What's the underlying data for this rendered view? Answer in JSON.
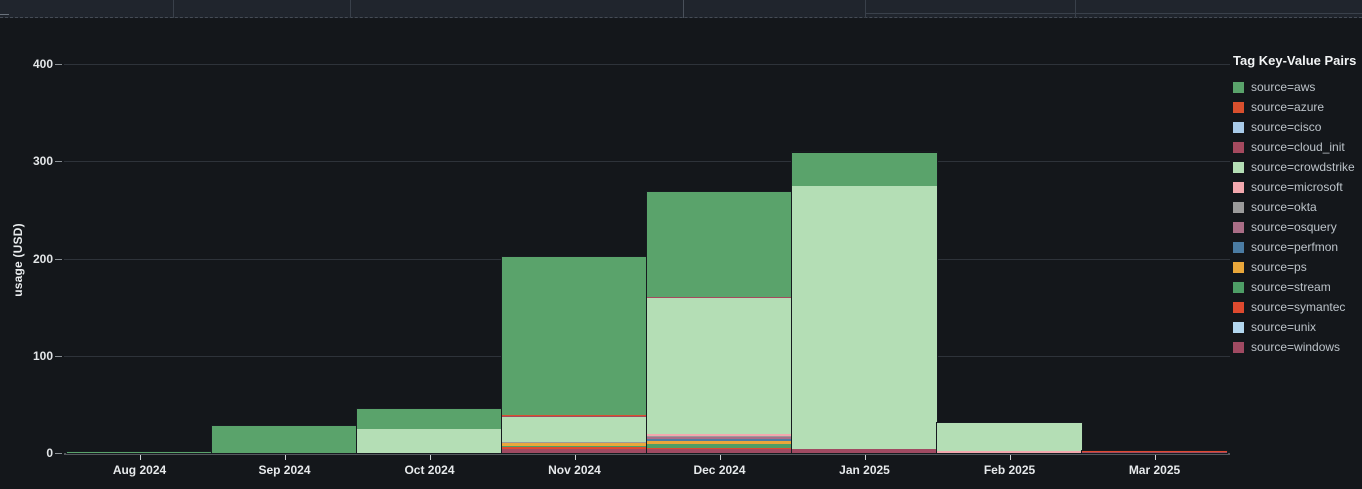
{
  "chart": {
    "y_axis": {
      "title": "usage (USD)",
      "ticks": [
        0,
        100,
        200,
        300,
        400
      ]
    },
    "x_axis": {
      "labels": [
        "Aug 2024",
        "Sep 2024",
        "Oct 2024",
        "Nov 2024",
        "Dec 2024",
        "Jan 2025",
        "Feb 2025",
        "Mar 2025"
      ]
    },
    "legend": {
      "title": "Tag Key-Value Pairs",
      "items": [
        {
          "label": "source=aws",
          "color": "#5aa36b"
        },
        {
          "label": "source=azure",
          "color": "#d9502e"
        },
        {
          "label": "source=cisco",
          "color": "#a9cbe9"
        },
        {
          "label": "source=cloud_init",
          "color": "#a54a5f"
        },
        {
          "label": "source=crowdstrike",
          "color": "#b4deb5"
        },
        {
          "label": "source=microsoft",
          "color": "#f2a8ae"
        },
        {
          "label": "source=okta",
          "color": "#9b9b9b"
        },
        {
          "label": "source=osquery",
          "color": "#aa6e87"
        },
        {
          "label": "source=perfmon",
          "color": "#4b7ca3"
        },
        {
          "label": "source=ps",
          "color": "#e9a73b"
        },
        {
          "label": "source=stream",
          "color": "#4e9e66"
        },
        {
          "label": "source=symantec",
          "color": "#de4a2f"
        },
        {
          "label": "source=unix",
          "color": "#b3d7ef"
        },
        {
          "label": "source=windows",
          "color": "#a04a62"
        }
      ]
    }
  },
  "chart_data": {
    "type": "bar",
    "stacked": true,
    "title": "",
    "xlabel": "",
    "ylabel": "usage (USD)",
    "ylim": [
      0,
      420
    ],
    "grid": "horizontal",
    "legend_position": "right",
    "categories": [
      "Aug 2024",
      "Sep 2024",
      "Oct 2024",
      "Nov 2024",
      "Dec 2024",
      "Jan 2025",
      "Feb 2025",
      "Mar 2025"
    ],
    "series": [
      {
        "name": "source=aws",
        "values": [
          1,
          28,
          20,
          163,
          107,
          34,
          0,
          0
        ]
      },
      {
        "name": "source=azure",
        "values": [
          0,
          0,
          0,
          0.7,
          1,
          0,
          0,
          0
        ]
      },
      {
        "name": "source=cisco",
        "values": [
          0,
          0,
          0,
          0,
          0,
          0,
          0,
          0
        ]
      },
      {
        "name": "source=cloud_init",
        "values": [
          0,
          0,
          0,
          0.7,
          1,
          0,
          0,
          0
        ]
      },
      {
        "name": "source=crowdstrike",
        "values": [
          0,
          0,
          25,
          26,
          139,
          271,
          29,
          0
        ]
      },
      {
        "name": "source=microsoft",
        "values": [
          0,
          0,
          0,
          0.5,
          2,
          0,
          2,
          0
        ]
      },
      {
        "name": "source=okta",
        "values": [
          0,
          0,
          0,
          0.5,
          2,
          0,
          0,
          0
        ]
      },
      {
        "name": "source=osquery",
        "values": [
          0,
          0,
          0,
          0,
          2,
          0,
          0,
          0
        ]
      },
      {
        "name": "source=perfmon",
        "values": [
          0,
          0,
          0,
          0.5,
          2,
          0,
          0,
          0
        ]
      },
      {
        "name": "source=ps",
        "values": [
          0,
          0,
          0,
          3,
          3,
          0,
          0,
          0
        ]
      },
      {
        "name": "source=stream",
        "values": [
          0,
          0,
          0,
          1,
          4,
          0,
          0,
          0
        ]
      },
      {
        "name": "source=symantec",
        "values": [
          0,
          0,
          0,
          2,
          1,
          0,
          0,
          1
        ]
      },
      {
        "name": "source=unix",
        "values": [
          0,
          0,
          0,
          0,
          0,
          0,
          0,
          0
        ]
      },
      {
        "name": "source=windows",
        "values": [
          0,
          0,
          0,
          4,
          4,
          4,
          0,
          1
        ]
      }
    ],
    "stack_order_bottom_up": [
      "source=windows",
      "source=unix",
      "source=symantec",
      "source=stream",
      "source=ps",
      "source=perfmon",
      "source=osquery",
      "source=okta",
      "source=microsoft",
      "source=crowdstrike",
      "source=cloud_init",
      "source=cisco",
      "source=azure",
      "source=aws"
    ],
    "monthly_totals": [
      1,
      28,
      45,
      201,
      268,
      309,
      31,
      2
    ]
  }
}
